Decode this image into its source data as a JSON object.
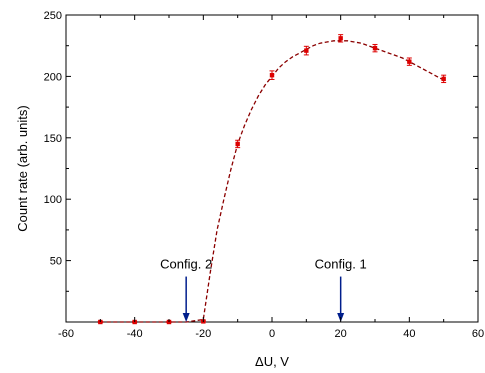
{
  "chart_data": {
    "type": "scatter",
    "title": "",
    "xlabel": "ΔU, V",
    "ylabel": "Count rate (arb. units)",
    "xlim": [
      -60,
      60
    ],
    "ylim": [
      0,
      250
    ],
    "x_ticks": [
      -60,
      -40,
      -20,
      0,
      20,
      40,
      60
    ],
    "y_ticks": [
      50,
      100,
      150,
      200,
      250
    ],
    "x_tick_labels": [
      "-60",
      "-40",
      "-20",
      "0",
      "20",
      "40",
      "60"
    ],
    "y_tick_labels": [
      "50",
      "100",
      "150",
      "200",
      "250"
    ],
    "grid": false,
    "series": [
      {
        "kind": "points",
        "color": "#dd0000",
        "x": [
          -50,
          -40,
          -30,
          -20,
          -10,
          0,
          10,
          20,
          30,
          40,
          50
        ],
        "y": [
          0,
          0,
          0,
          0.5,
          145,
          201,
          221,
          231,
          223,
          212,
          198
        ],
        "yerr": [
          0.5,
          0.5,
          0.5,
          0.5,
          3,
          3.5,
          3.5,
          3,
          3,
          3,
          3
        ]
      },
      {
        "kind": "fit-curve",
        "color": "#8b0000",
        "style": "dashed",
        "x": [
          -50,
          -25,
          -20,
          -18,
          -16,
          -14,
          -12,
          -10,
          -8,
          -6,
          -4,
          -2,
          0,
          2,
          4,
          6,
          8,
          10,
          12,
          14,
          16,
          18,
          20,
          22,
          24,
          26,
          28,
          30,
          32,
          34,
          36,
          38,
          40,
          42,
          44,
          46,
          48,
          50
        ],
        "y": [
          0,
          0,
          2,
          40,
          75,
          100,
          124,
          145,
          160,
          173,
          184,
          193,
          200,
          207,
          212,
          216,
          219,
          222,
          225,
          227,
          228,
          229,
          229,
          229,
          228,
          227,
          225,
          223,
          221,
          219,
          217,
          215,
          212,
          209,
          206,
          203,
          200,
          197
        ]
      }
    ],
    "annotations": [
      {
        "label": "Config. 2",
        "x": -25,
        "arrow_from_y": 37,
        "arrow_to_y": 0,
        "color": "#001e8c"
      },
      {
        "label": "Config. 1",
        "x": 20,
        "arrow_from_y": 37,
        "arrow_to_y": 0,
        "color": "#001e8c"
      }
    ]
  }
}
